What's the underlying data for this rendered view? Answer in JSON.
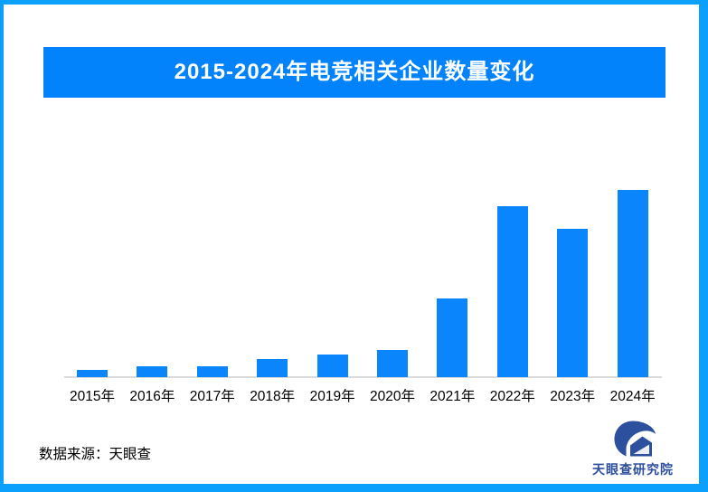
{
  "frame": {
    "border_color": "#0aa0fb",
    "background_color": "#ffffff"
  },
  "header": {
    "title": "2015-2024年电竞相关企业数量变化",
    "banner_color": "#0383fb",
    "title_text_color": "#ffffff"
  },
  "chart_data": {
    "type": "bar",
    "title": "2015-2024年电竞相关企业数量变化",
    "categories": [
      "2015年",
      "2016年",
      "2017年",
      "2018年",
      "2019年",
      "2020年",
      "2021年",
      "2022年",
      "2023年",
      "2024年"
    ],
    "values": [
      4,
      5.7,
      6,
      9.5,
      12,
      14.3,
      42,
      91.5,
      79,
      100
    ],
    "value_unit": "relative bar height, % of 2024 bar (no numeric value axis shown in image)",
    "xlabel": "",
    "ylabel": "",
    "ylim": [
      0,
      100
    ],
    "gridlines": false,
    "legend": false,
    "bar_color": "#0b85fb",
    "axis_line_color": "#dadada"
  },
  "footer": {
    "source_label": "数据来源：天眼查"
  },
  "logo": {
    "text": "天眼查研究院",
    "color": "#2c4f9e",
    "icon": "tianyancha-eye-house-logo"
  }
}
